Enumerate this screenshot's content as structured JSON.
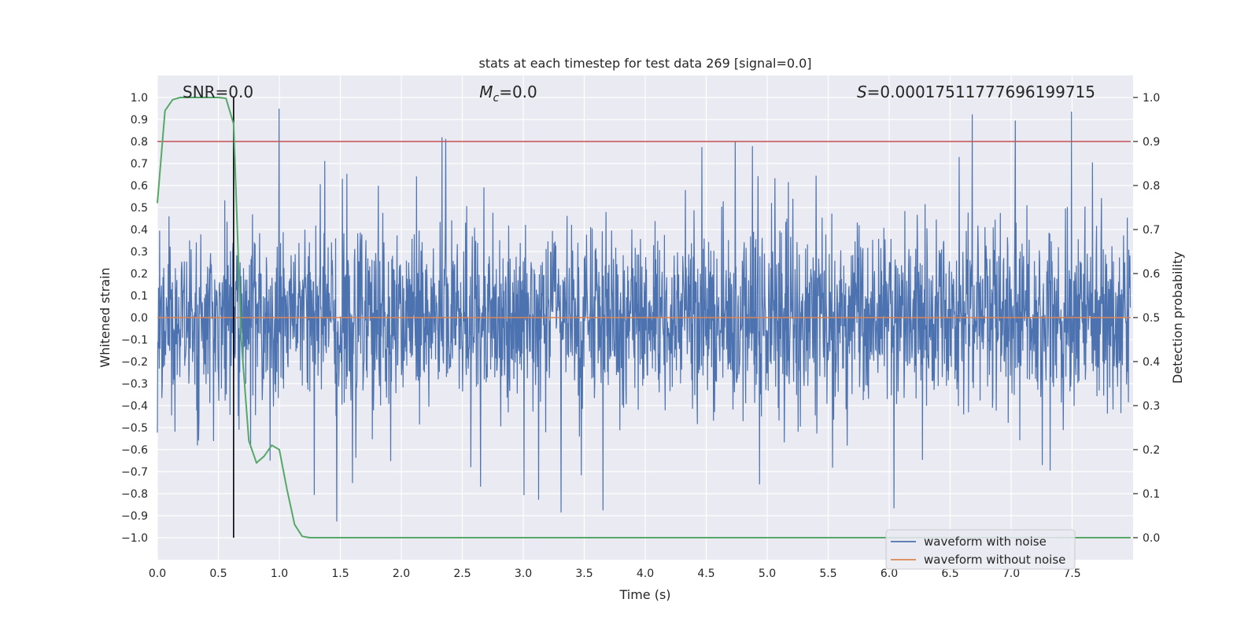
{
  "chart_data": {
    "type": "line",
    "title": "stats at each timestep for test data 269 [signal=0.0]",
    "xlabel": "Time (s)",
    "ylabel": "Whitened strain",
    "y2label": "Detection probability",
    "xlim": [
      0.0,
      8.0
    ],
    "ylim": [
      -1.1,
      1.1
    ],
    "y2lim": [
      -0.05,
      1.05
    ],
    "x_ticks": [
      0.0,
      0.5,
      1.0,
      1.5,
      2.0,
      2.5,
      3.0,
      3.5,
      4.0,
      4.5,
      5.0,
      5.5,
      6.0,
      6.5,
      7.0,
      7.5
    ],
    "x_tick_labels": [
      "0.0",
      "0.5",
      "1.0",
      "1.5",
      "2.0",
      "2.5",
      "3.0",
      "3.5",
      "4.0",
      "4.5",
      "5.0",
      "5.5",
      "6.0",
      "6.5",
      "7.0",
      "7.5"
    ],
    "y_ticks": [
      1.0,
      0.9,
      0.8,
      0.7,
      0.6,
      0.5,
      0.4,
      0.3,
      0.2,
      0.1,
      0.0,
      -0.1,
      -0.2,
      -0.3,
      -0.4,
      -0.5,
      -0.6,
      -0.7,
      -0.8,
      -0.9,
      -1.0
    ],
    "y_tick_labels": [
      "1.0",
      "0.9",
      "0.8",
      "0.7",
      "0.6",
      "0.5",
      "0.4",
      "0.3",
      "0.2",
      "0.1",
      "0.0",
      "−0.1",
      "−0.2",
      "−0.3",
      "−0.4",
      "−0.5",
      "−0.6",
      "−0.7",
      "−0.8",
      "−0.9",
      "−1.0"
    ],
    "y2_ticks": [
      1.0,
      0.9,
      0.8,
      0.7,
      0.6,
      0.5,
      0.4,
      0.3,
      0.2,
      0.1,
      0.0
    ],
    "y2_tick_labels": [
      "1.0",
      "0.9",
      "0.8",
      "0.7",
      "0.6",
      "0.5",
      "0.4",
      "0.3",
      "0.2",
      "0.1",
      "0.0"
    ],
    "annotations": {
      "snr": "SNR=0.0",
      "mc_symbol": "M",
      "mc_sub": "c",
      "mc_value": "=0.0",
      "s_symbol": "S",
      "s_value": "=0.00017511777696199715"
    },
    "threshold": {
      "y2": 0.9,
      "color": "#c44e52"
    },
    "marker_time": 0.625,
    "series": [
      {
        "name": "waveform with noise",
        "color": "#4c72b0",
        "axis": "left",
        "note": "stationary noise, amplitude mostly within ±0.3 with spikes up to ±1.0"
      },
      {
        "name": "waveform without noise",
        "color": "#dd8452",
        "axis": "left",
        "x": [
          0.0,
          7.98
        ],
        "y": [
          0.0,
          0.0
        ]
      },
      {
        "name": "detection probability",
        "color": "#55a868",
        "axis": "right",
        "x": [
          0.0,
          0.0625,
          0.125,
          0.1875,
          0.25,
          0.3125,
          0.375,
          0.4375,
          0.5,
          0.5625,
          0.625,
          0.6875,
          0.75,
          0.8125,
          0.875,
          0.9375,
          1.0,
          1.0625,
          1.125,
          1.1875,
          1.25,
          7.98
        ],
        "y": [
          0.76,
          0.97,
          0.995,
          1.0,
          1.0,
          1.0,
          1.0,
          1.0,
          1.0,
          0.998,
          0.94,
          0.45,
          0.22,
          0.17,
          0.185,
          0.21,
          0.2,
          0.11,
          0.03,
          0.003,
          0.0,
          0.0
        ]
      }
    ],
    "legend": {
      "position": "lower-right",
      "entries": [
        {
          "label": "waveform with noise",
          "color": "#4c72b0"
        },
        {
          "label": "waveform without noise",
          "color": "#dd8452"
        }
      ]
    },
    "style": {
      "axes_bg": "#eaeaf2",
      "grid": "#ffffff",
      "text": "#262626"
    }
  }
}
